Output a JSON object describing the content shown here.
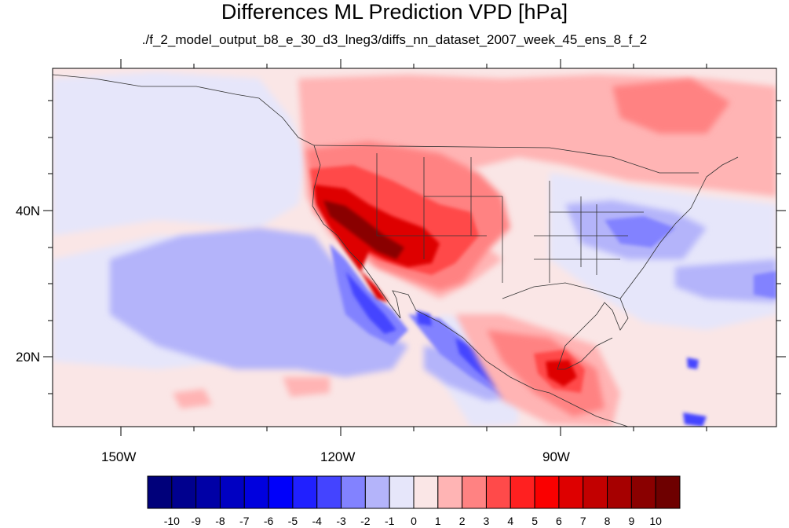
{
  "title": "Differences ML Prediction VPD [hPa]",
  "subtitle": "./f_2_model_output_b8_e_30_d3_lneg3/diffs_nn_dataset_2007_week_45_ens_8_f_2",
  "axes": {
    "x_ticks": [
      "150W",
      "120W",
      "90W"
    ],
    "y_ticks": [
      "40N",
      "20N"
    ]
  },
  "colorbar": {
    "labels": [
      "-10",
      "-9",
      "-8",
      "-7",
      "-6",
      "-5",
      "-4",
      "-3",
      "-2",
      "-1",
      "0",
      "1",
      "2",
      "3",
      "4",
      "5",
      "6",
      "7",
      "8",
      "9",
      "10"
    ],
    "colors": [
      "#00007a",
      "#00008e",
      "#0000a6",
      "#0000c2",
      "#0000de",
      "#0000fa",
      "#2020ff",
      "#4444ff",
      "#8282ff",
      "#b4b4fa",
      "#e6e6fa",
      "#fae6e6",
      "#ffb4b4",
      "#ff8282",
      "#ff4a4a",
      "#ff2020",
      "#fa0000",
      "#de0000",
      "#c20000",
      "#a60000",
      "#8a0000",
      "#6e0000"
    ]
  },
  "map_colors": {
    "ocean_base": "#fae6e6",
    "light_blue": "#e6e6fa",
    "mid_blue": "#b4b4fa",
    "blue": "#8282ff",
    "deep_blue": "#4444ff",
    "light_red": "#ffb4b4",
    "red": "#ff8282",
    "strong_red": "#ff4a4a",
    "dark_red": "#de0000",
    "darkest_red": "#8a0000",
    "coast": "#333333"
  }
}
